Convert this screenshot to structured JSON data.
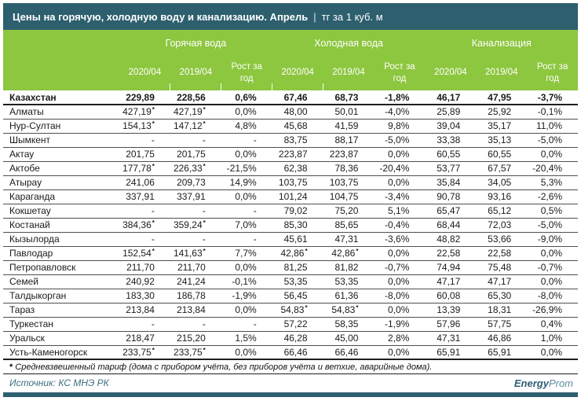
{
  "chart_data": {
    "type": "table",
    "title": "Цены на горячую, холодную воду и канализацию. Апрель",
    "title_separator": "|",
    "unit": "тг за 1 куб. м",
    "column_groups": [
      "Горячая вода",
      "Холодная вода",
      "Канализация"
    ],
    "sub_columns": [
      "2020/04",
      "2019/04",
      "Рост за год"
    ],
    "rows": [
      {
        "name": "Казахстан",
        "bold": true,
        "values": [
          "229,89",
          "228,56",
          "0,6%",
          "67,46",
          "68,73",
          "-1,8%",
          "46,17",
          "47,95",
          "-3,7%"
        ]
      },
      {
        "name": "Алматы",
        "values": [
          "427,19*",
          "427,19*",
          "0,0%",
          "48,00",
          "50,01",
          "-4,0%",
          "25,89",
          "25,92",
          "-0,1%"
        ]
      },
      {
        "name": "Нур-Султан",
        "values": [
          "154,13*",
          "147,12*",
          "4,8%",
          "45,68",
          "41,59",
          "9,8%",
          "39,04",
          "35,17",
          "11,0%"
        ]
      },
      {
        "name": "Шымкент",
        "values": [
          "-",
          "-",
          "-",
          "83,75",
          "88,17",
          "-5,0%",
          "33,38",
          "35,13",
          "-5,0%"
        ]
      },
      {
        "name": "Актау",
        "values": [
          "201,75",
          "201,75",
          "0,0%",
          "223,87",
          "223,87",
          "0,0%",
          "60,55",
          "60,55",
          "0,0%"
        ]
      },
      {
        "name": "Актобе",
        "values": [
          "177,78*",
          "226,33*",
          "-21,5%",
          "62,38",
          "78,36",
          "-20,4%",
          "53,77",
          "67,57",
          "-20,4%"
        ]
      },
      {
        "name": "Атырау",
        "values": [
          "241,06",
          "209,73",
          "14,9%",
          "103,75",
          "103,75",
          "0,0%",
          "35,84",
          "34,05",
          "5,3%"
        ]
      },
      {
        "name": "Караганда",
        "values": [
          "337,91",
          "337,91",
          "0,0%",
          "101,24",
          "104,75",
          "-3,4%",
          "90,78",
          "93,16",
          "-2,6%"
        ]
      },
      {
        "name": "Кокшетау",
        "values": [
          "-",
          "-",
          "-",
          "79,02",
          "75,20",
          "5,1%",
          "65,47",
          "65,12",
          "0,5%"
        ]
      },
      {
        "name": "Костанай",
        "values": [
          "384,36*",
          "359,24*",
          "7,0%",
          "85,30",
          "85,65",
          "-0,4%",
          "68,44",
          "72,03",
          "-5,0%"
        ]
      },
      {
        "name": "Кызылорда",
        "values": [
          "-",
          "-",
          "-",
          "45,61",
          "47,31",
          "-3,6%",
          "48,82",
          "53,66",
          "-9,0%"
        ]
      },
      {
        "name": "Павлодар",
        "values": [
          "152,54*",
          "141,63*",
          "7,7%",
          "42,86*",
          "42,86*",
          "0,0%",
          "22,58",
          "22,58",
          "0,0%"
        ]
      },
      {
        "name": "Петропавловск",
        "values": [
          "211,70",
          "211,70",
          "0,0%",
          "81,25",
          "81,82",
          "-0,7%",
          "74,94",
          "75,48",
          "-0,7%"
        ]
      },
      {
        "name": "Семей",
        "values": [
          "240,92",
          "241,24",
          "-0,1%",
          "53,35",
          "53,35",
          "0,0%",
          "47,17",
          "47,17",
          "0,0%"
        ]
      },
      {
        "name": "Талдыкорган",
        "values": [
          "183,30",
          "186,78",
          "-1,9%",
          "56,45",
          "61,36",
          "-8,0%",
          "60,08",
          "65,30",
          "-8,0%"
        ]
      },
      {
        "name": "Тараз",
        "values": [
          "213,84",
          "213,84",
          "0,0%",
          "54,83*",
          "54,83*",
          "0,0%",
          "13,39",
          "18,31",
          "-26,9%"
        ]
      },
      {
        "name": "Туркестан",
        "values": [
          "-",
          "-",
          "-",
          "57,22",
          "58,35",
          "-1,9%",
          "57,96",
          "57,75",
          "0,4%"
        ]
      },
      {
        "name": "Уральск",
        "values": [
          "218,47",
          "215,20",
          "1,5%",
          "46,28",
          "45,00",
          "2,8%",
          "47,31",
          "46,86",
          "1,0%"
        ]
      },
      {
        "name": "Усть-Каменогорск",
        "values": [
          "233,75*",
          "233,75*",
          "0,0%",
          "66,46",
          "66,46",
          "0,0%",
          "65,91",
          "65,91",
          "0,0%"
        ]
      }
    ]
  },
  "footnote": {
    "marker": "*",
    "text": "Средневзвешенный тариф (дома с прибором учёта, без  приборов учёта и ветхие, аварийные дома)."
  },
  "footer": {
    "source": "Источник: КС МНЭ РК",
    "logo_bold": "Energy",
    "logo_light": "Prom"
  },
  "colors": {
    "teal": "#2d5f6e",
    "green": "#8dc63f"
  }
}
